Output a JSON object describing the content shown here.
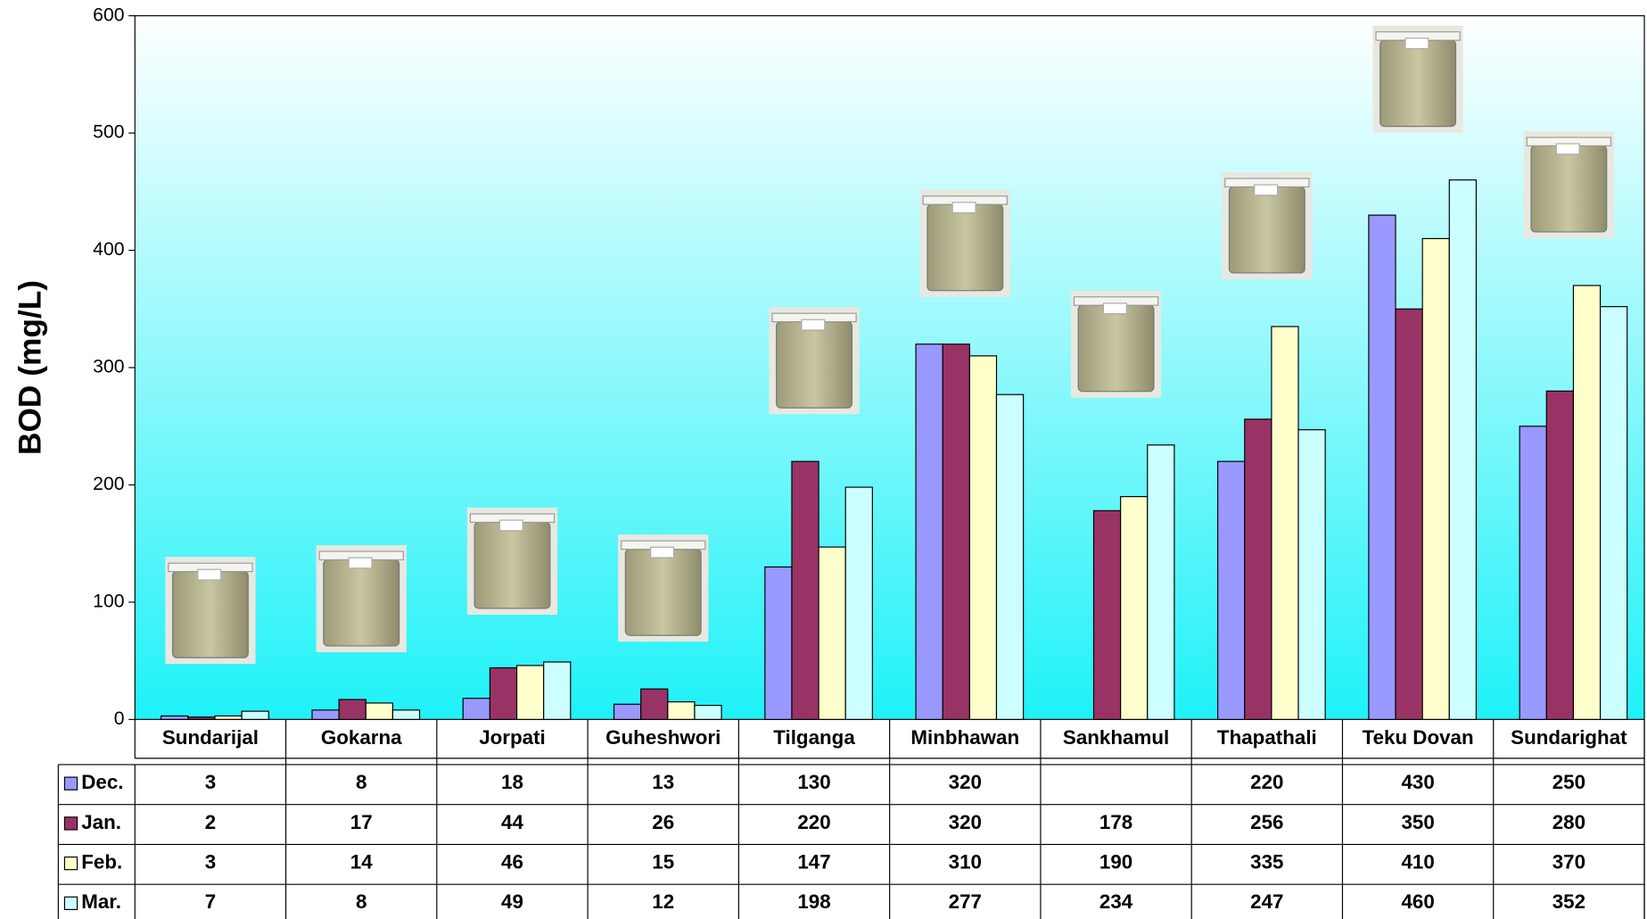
{
  "chart_data": {
    "type": "bar",
    "y_label": "BOD (mg/L)",
    "categories": [
      "Sundarijal",
      "Gokarna",
      "Jorpati",
      "Guheshwori",
      "Tilganga",
      "Minbhawan",
      "Sankhamul",
      "Thapathali",
      "Teku Dovan",
      "Sundarighat"
    ],
    "series": [
      {
        "name": "Dec.",
        "color": "#9999ff",
        "values": [
          3,
          8,
          18,
          13,
          130,
          320,
          null,
          220,
          430,
          250
        ]
      },
      {
        "name": "Jan.",
        "color": "#993366",
        "values": [
          2,
          17,
          44,
          26,
          220,
          320,
          178,
          256,
          350,
          280
        ]
      },
      {
        "name": "Feb.",
        "color": "#ffffcc",
        "values": [
          3,
          14,
          46,
          15,
          147,
          310,
          190,
          335,
          410,
          370
        ]
      },
      {
        "name": "Mar.",
        "color": "#ccffff",
        "values": [
          7,
          8,
          49,
          12,
          198,
          277,
          234,
          247,
          460,
          352
        ]
      }
    ],
    "ylim": [
      0,
      600
    ],
    "yticks": [
      0,
      100,
      200,
      300,
      400,
      500,
      600
    ],
    "grid": false
  }
}
